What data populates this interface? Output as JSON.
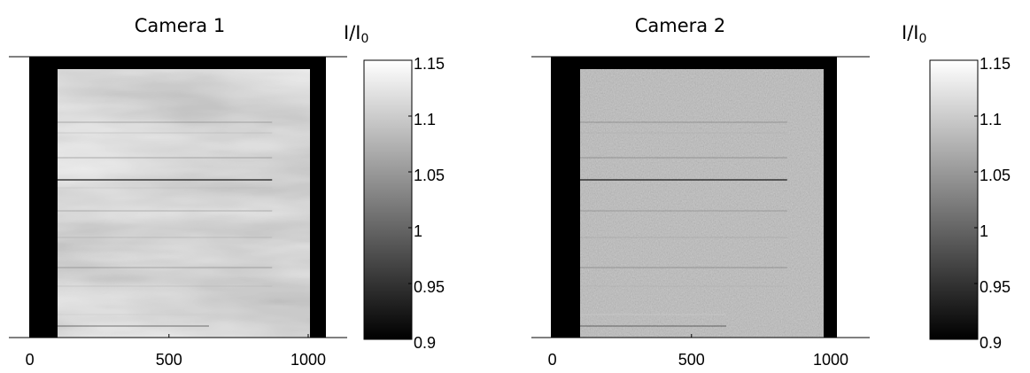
{
  "chart_data": [
    {
      "type": "image",
      "title": "Camera 1",
      "xlim": [
        -75,
        1140
      ],
      "xticks": [
        0,
        500,
        1000
      ],
      "colorbar_label": "I/I",
      "colorbar_label_sub": "0",
      "clim": [
        0.9,
        1.15
      ],
      "cticks": [
        0.9,
        0.95,
        1,
        1.05,
        1.1,
        1.15
      ],
      "colormap": "gray"
    },
    {
      "type": "image",
      "title": "Camera 2",
      "xlim": [
        -75,
        1140
      ],
      "xticks": [
        0,
        500,
        1000
      ],
      "colorbar_label": "I/I",
      "colorbar_label_sub": "0",
      "clim": [
        0.9,
        1.15
      ],
      "cticks": [
        0.9,
        0.95,
        1,
        1.05,
        1.1,
        1.15
      ],
      "colormap": "gray"
    }
  ]
}
